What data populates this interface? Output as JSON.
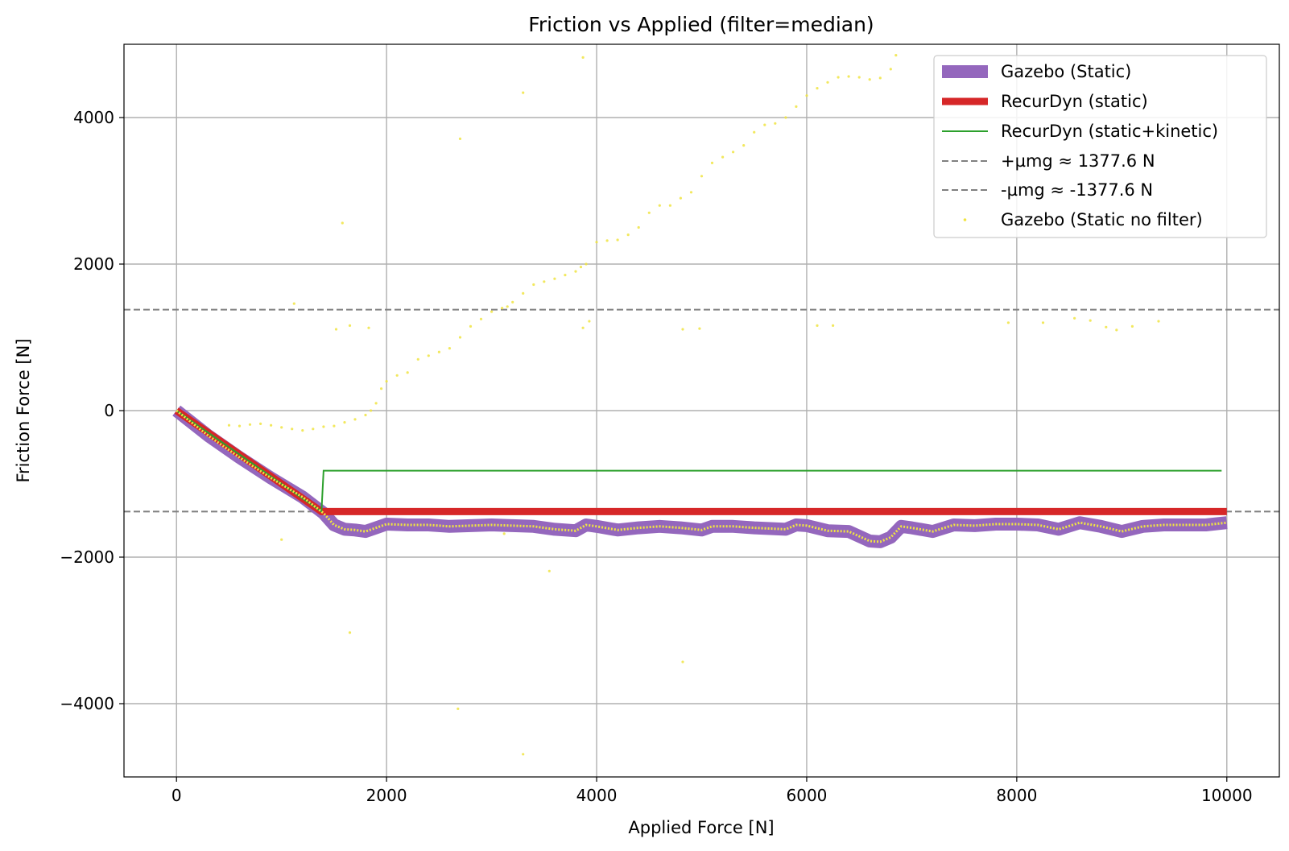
{
  "chart_data": {
    "type": "line",
    "title": "Friction vs Applied (filter=median)",
    "xlabel": "Applied Force [N]",
    "ylabel": "Friction Force [N]",
    "xlim": [
      -500,
      10500
    ],
    "ylim": [
      -5000,
      5000
    ],
    "x_ticks": [
      0,
      2000,
      4000,
      6000,
      8000,
      10000
    ],
    "y_ticks": [
      -4000,
      -2000,
      0,
      2000,
      4000
    ],
    "x_tick_labels": [
      "0",
      "2000",
      "4000",
      "6000",
      "8000",
      "10000"
    ],
    "y_tick_labels": [
      "−4000",
      "−2000",
      "0",
      "2000",
      "4000"
    ],
    "grid": true,
    "legend_position": "top-right",
    "series": [
      {
        "name": "Gazebo (Static)",
        "style": "line",
        "color": "#9467bd",
        "x": [
          0,
          300,
          600,
          900,
          1200,
          1400,
          1500,
          1600,
          1700,
          1800,
          1900,
          2000,
          2200,
          2400,
          2600,
          2800,
          3000,
          3200,
          3400,
          3600,
          3800,
          3900,
          4000,
          4200,
          4400,
          4600,
          4800,
          5000,
          5100,
          5300,
          5500,
          5800,
          5900,
          6000,
          6200,
          6400,
          6600,
          6700,
          6800,
          6900,
          7000,
          7200,
          7400,
          7600,
          7800,
          8000,
          8200,
          8400,
          8600,
          8800,
          9000,
          9200,
          9400,
          9600,
          9800,
          10000
        ],
        "y": [
          0,
          -340,
          -640,
          -920,
          -1180,
          -1400,
          -1560,
          -1620,
          -1630,
          -1650,
          -1600,
          -1550,
          -1560,
          -1560,
          -1580,
          -1570,
          -1560,
          -1570,
          -1580,
          -1620,
          -1640,
          -1560,
          -1580,
          -1630,
          -1600,
          -1580,
          -1600,
          -1630,
          -1580,
          -1580,
          -1600,
          -1620,
          -1560,
          -1570,
          -1640,
          -1650,
          -1780,
          -1790,
          -1730,
          -1580,
          -1600,
          -1650,
          -1560,
          -1570,
          -1550,
          -1550,
          -1560,
          -1620,
          -1530,
          -1580,
          -1650,
          -1580,
          -1560,
          -1560,
          -1560,
          -1530
        ]
      },
      {
        "name": "RecurDyn (static)",
        "style": "line",
        "color": "#d62728",
        "x": [
          0,
          1380,
          10000
        ],
        "y": [
          0,
          -1377.6,
          -1377.6
        ]
      },
      {
        "name": "RecurDyn (static+kinetic)",
        "style": "line",
        "color": "#2ca02c",
        "x": [
          0,
          1380,
          1400,
          9950
        ],
        "y": [
          0,
          -1377.6,
          -820,
          -820
        ]
      },
      {
        "name": "+µmg ≈ 1377.6 N",
        "style": "dashed-hline",
        "color": "#808080",
        "y": 1377.6
      },
      {
        "name": "-µmg ≈ -1377.6 N",
        "style": "dashed-hline",
        "color": "#808080",
        "y": -1377.6
      },
      {
        "name": "Gazebo (Static no filter)",
        "style": "scatter",
        "color": "#f0e442",
        "x": [
          500,
          600,
          700,
          800,
          900,
          1000,
          1100,
          1200,
          1300,
          1400,
          1500,
          1600,
          1700,
          1800,
          1850,
          1900,
          1950,
          2000,
          2100,
          2200,
          2300,
          2400,
          2500,
          2600,
          2700,
          2800,
          2900,
          3000,
          3100,
          3150,
          3200,
          3300,
          3400,
          3500,
          3600,
          3700,
          3800,
          3850,
          3900,
          4000,
          4100,
          4200,
          4300,
          4400,
          4500,
          4600,
          4700,
          4800,
          4900,
          5000,
          5100,
          5200,
          5300,
          5400,
          5500,
          5600,
          5700,
          5800,
          5900,
          6000,
          6100,
          6200,
          6300,
          6400,
          6500,
          6600,
          6700,
          6800,
          6850,
          1120,
          1520,
          1650,
          1830,
          3870,
          3930,
          4820,
          4980,
          6100,
          6250,
          7920,
          8250,
          8550,
          8700,
          8850,
          8950,
          9100,
          9350,
          1000,
          1650,
          2680,
          2700,
          3300,
          3550,
          4820,
          1580,
          3870,
          3300,
          3120
        ],
        "y": [
          -200,
          -210,
          -190,
          -180,
          -200,
          -230,
          -250,
          -270,
          -250,
          -220,
          -210,
          -160,
          -120,
          -60,
          0,
          100,
          300,
          400,
          480,
          520,
          700,
          750,
          800,
          850,
          1000,
          1150,
          1250,
          1350,
          1400,
          1420,
          1480,
          1600,
          1720,
          1760,
          1800,
          1850,
          1900,
          1960,
          2000,
          2300,
          2320,
          2330,
          2400,
          2500,
          2700,
          2800,
          2800,
          2900,
          2980,
          3200,
          3380,
          3460,
          3530,
          3620,
          3800,
          3900,
          3920,
          4000,
          4150,
          4300,
          4400,
          4480,
          4550,
          4560,
          4550,
          4520,
          4540,
          4660,
          4850,
          1460,
          1110,
          1160,
          1130,
          1130,
          1220,
          1110,
          1120,
          1160,
          1160,
          1200,
          1200,
          1260,
          1230,
          1140,
          1100,
          1150,
          1220,
          -1760,
          -3030,
          -4070,
          3710,
          -4690,
          -2190,
          -3430,
          2560,
          4820,
          4340,
          -1680
        ]
      }
    ]
  }
}
